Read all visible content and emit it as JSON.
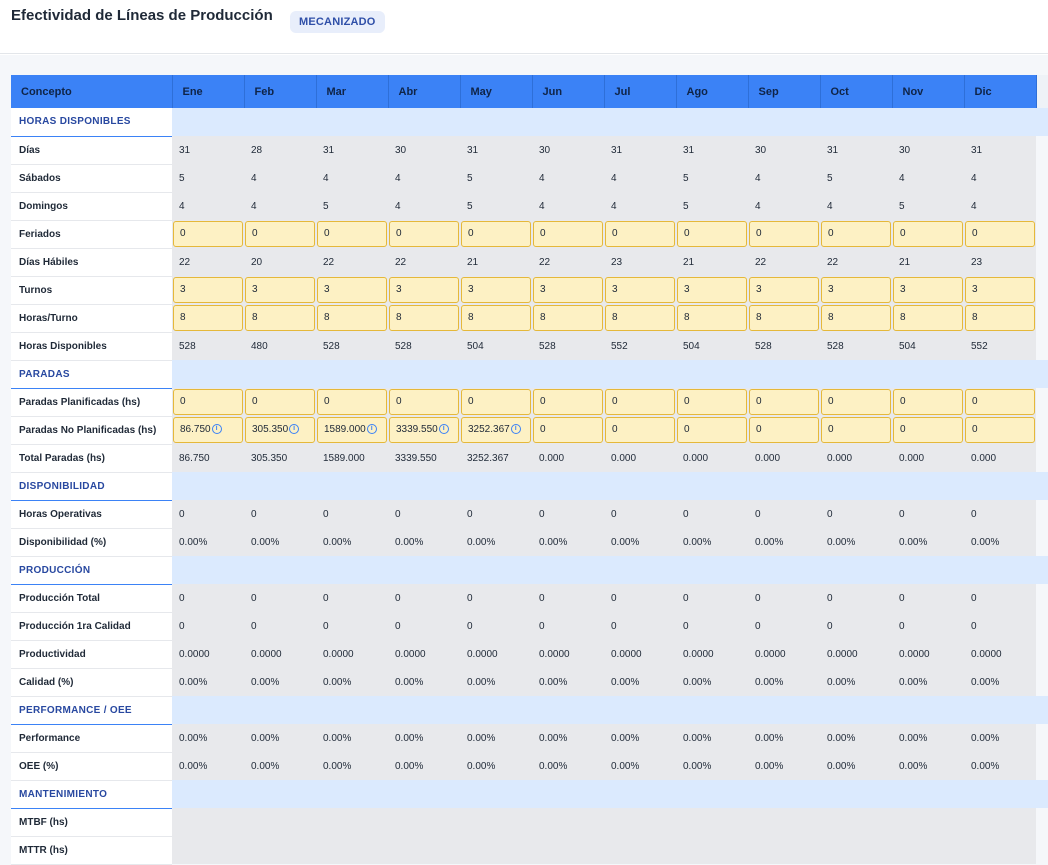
{
  "title": "Efectividad de Líneas de Producción",
  "badge": "MECANIZADO",
  "header": {
    "concept": "Concepto",
    "months": [
      "Ene",
      "Feb",
      "Mar",
      "Abr",
      "May",
      "Jun",
      "Jul",
      "Ago",
      "Sep",
      "Oct",
      "Nov",
      "Dic"
    ]
  },
  "sections": [
    {
      "title": "HORAS DISPONIBLES",
      "rows": [
        {
          "label": "Días",
          "editable": false,
          "values": [
            "31",
            "28",
            "31",
            "30",
            "31",
            "30",
            "31",
            "31",
            "30",
            "31",
            "30",
            "31"
          ]
        },
        {
          "label": "Sábados",
          "editable": false,
          "values": [
            "5",
            "4",
            "4",
            "4",
            "5",
            "4",
            "4",
            "5",
            "4",
            "5",
            "4",
            "4"
          ]
        },
        {
          "label": "Domingos",
          "editable": false,
          "values": [
            "4",
            "4",
            "5",
            "4",
            "5",
            "4",
            "4",
            "5",
            "4",
            "4",
            "5",
            "4"
          ]
        },
        {
          "label": "Feriados",
          "editable": true,
          "values": [
            "0",
            "0",
            "0",
            "0",
            "0",
            "0",
            "0",
            "0",
            "0",
            "0",
            "0",
            "0"
          ]
        },
        {
          "label": "Días Hábiles",
          "editable": false,
          "values": [
            "22",
            "20",
            "22",
            "22",
            "21",
            "22",
            "23",
            "21",
            "22",
            "22",
            "21",
            "23"
          ]
        },
        {
          "label": "Turnos",
          "editable": true,
          "values": [
            "3",
            "3",
            "3",
            "3",
            "3",
            "3",
            "3",
            "3",
            "3",
            "3",
            "3",
            "3"
          ]
        },
        {
          "label": "Horas/Turno",
          "editable": true,
          "values": [
            "8",
            "8",
            "8",
            "8",
            "8",
            "8",
            "8",
            "8",
            "8",
            "8",
            "8",
            "8"
          ]
        },
        {
          "label": "Horas Disponibles",
          "editable": false,
          "values": [
            "528",
            "480",
            "528",
            "528",
            "504",
            "528",
            "552",
            "504",
            "528",
            "528",
            "504",
            "552"
          ]
        }
      ]
    },
    {
      "title": "PARADAS",
      "rows": [
        {
          "label": "Paradas Planificadas (hs)",
          "editable": true,
          "values": [
            "0",
            "0",
            "0",
            "0",
            "0",
            "0",
            "0",
            "0",
            "0",
            "0",
            "0",
            "0"
          ]
        },
        {
          "label": "Paradas No Planificadas (hs)",
          "editable": true,
          "info": [
            true,
            true,
            true,
            true,
            true,
            false,
            false,
            false,
            false,
            false,
            false,
            false
          ],
          "values": [
            "86.750",
            "305.350",
            "1589.000",
            "3339.550",
            "3252.367",
            "0",
            "0",
            "0",
            "0",
            "0",
            "0",
            "0"
          ]
        },
        {
          "label": "Total Paradas (hs)",
          "editable": false,
          "values": [
            "86.750",
            "305.350",
            "1589.000",
            "3339.550",
            "3252.367",
            "0.000",
            "0.000",
            "0.000",
            "0.000",
            "0.000",
            "0.000",
            "0.000"
          ]
        }
      ]
    },
    {
      "title": "DISPONIBILIDAD",
      "rows": [
        {
          "label": "Horas Operativas",
          "editable": false,
          "values": [
            "0",
            "0",
            "0",
            "0",
            "0",
            "0",
            "0",
            "0",
            "0",
            "0",
            "0",
            "0"
          ]
        },
        {
          "label": "Disponibilidad (%)",
          "editable": false,
          "values": [
            "0.00%",
            "0.00%",
            "0.00%",
            "0.00%",
            "0.00%",
            "0.00%",
            "0.00%",
            "0.00%",
            "0.00%",
            "0.00%",
            "0.00%",
            "0.00%"
          ]
        }
      ]
    },
    {
      "title": "PRODUCCIÓN",
      "rows": [
        {
          "label": "Producción Total",
          "editable": false,
          "values": [
            "0",
            "0",
            "0",
            "0",
            "0",
            "0",
            "0",
            "0",
            "0",
            "0",
            "0",
            "0"
          ]
        },
        {
          "label": "Producción 1ra Calidad",
          "editable": false,
          "values": [
            "0",
            "0",
            "0",
            "0",
            "0",
            "0",
            "0",
            "0",
            "0",
            "0",
            "0",
            "0"
          ]
        },
        {
          "label": "Productividad",
          "editable": false,
          "values": [
            "0.0000",
            "0.0000",
            "0.0000",
            "0.0000",
            "0.0000",
            "0.0000",
            "0.0000",
            "0.0000",
            "0.0000",
            "0.0000",
            "0.0000",
            "0.0000"
          ]
        },
        {
          "label": "Calidad (%)",
          "editable": false,
          "values": [
            "0.00%",
            "0.00%",
            "0.00%",
            "0.00%",
            "0.00%",
            "0.00%",
            "0.00%",
            "0.00%",
            "0.00%",
            "0.00%",
            "0.00%",
            "0.00%"
          ]
        }
      ]
    },
    {
      "title": "PERFORMANCE / OEE",
      "rows": [
        {
          "label": "Performance",
          "editable": false,
          "values": [
            "0.00%",
            "0.00%",
            "0.00%",
            "0.00%",
            "0.00%",
            "0.00%",
            "0.00%",
            "0.00%",
            "0.00%",
            "0.00%",
            "0.00%",
            "0.00%"
          ]
        },
        {
          "label": "OEE (%)",
          "editable": false,
          "values": [
            "0.00%",
            "0.00%",
            "0.00%",
            "0.00%",
            "0.00%",
            "0.00%",
            "0.00%",
            "0.00%",
            "0.00%",
            "0.00%",
            "0.00%",
            "0.00%"
          ]
        }
      ]
    },
    {
      "title": "MANTENIMIENTO",
      "rows": [
        {
          "label": "MTBF (hs)",
          "editable": false,
          "values": [
            "",
            "",
            "",
            "",
            "",
            "",
            "",
            "",
            "",
            "",
            "",
            ""
          ]
        },
        {
          "label": "MTTR (hs)",
          "editable": false,
          "values": [
            "",
            "",
            "",
            "",
            "",
            "",
            "",
            "",
            "",
            "",
            "",
            ""
          ]
        }
      ]
    }
  ],
  "colors": {
    "header": "#3b82f6",
    "section_fill": "#dbeafe",
    "input_fill": "#fdf1c4",
    "input_border": "#e5b83a",
    "value_fill": "#e8e9ec"
  },
  "icons": {
    "info": "info-circle-icon"
  }
}
